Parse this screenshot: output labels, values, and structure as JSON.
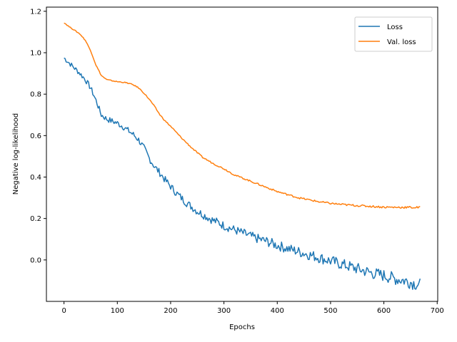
{
  "chart_data": {
    "type": "line",
    "title": "",
    "xlabel": "Epochs",
    "ylabel": "Negative log-likelihood",
    "xlim": [
      -33,
      701
    ],
    "ylim": [
      -0.2,
      1.22
    ],
    "xticks": [
      "0",
      "100",
      "200",
      "300",
      "400",
      "500",
      "600",
      "700"
    ],
    "yticks": [
      "0.0",
      "0.2",
      "0.4",
      "0.6",
      "0.8",
      "1.0",
      "1.2"
    ],
    "grid": false,
    "legend_position": "top-right",
    "series": [
      {
        "name": "Loss",
        "color": "#1f77b4",
        "noise": 0.012,
        "x": [
          0,
          10,
          20,
          30,
          40,
          50,
          60,
          70,
          80,
          90,
          100,
          110,
          120,
          130,
          140,
          150,
          160,
          170,
          180,
          190,
          200,
          210,
          220,
          230,
          240,
          250,
          260,
          270,
          280,
          290,
          300,
          320,
          340,
          360,
          380,
          400,
          420,
          440,
          460,
          480,
          500,
          520,
          540,
          560,
          580,
          600,
          620,
          640,
          660,
          668
        ],
        "values": [
          0.975,
          0.95,
          0.925,
          0.9,
          0.87,
          0.83,
          0.77,
          0.7,
          0.68,
          0.67,
          0.66,
          0.645,
          0.625,
          0.605,
          0.58,
          0.54,
          0.49,
          0.45,
          0.42,
          0.385,
          0.355,
          0.325,
          0.3,
          0.275,
          0.255,
          0.235,
          0.22,
          0.205,
          0.19,
          0.18,
          0.165,
          0.145,
          0.125,
          0.105,
          0.09,
          0.07,
          0.055,
          0.04,
          0.025,
          0.01,
          -0.005,
          -0.02,
          -0.035,
          -0.05,
          -0.065,
          -0.075,
          -0.09,
          -0.1,
          -0.115,
          -0.12
        ]
      },
      {
        "name": "Val. loss",
        "color": "#ff7f0e",
        "noise": 0.002,
        "x": [
          0,
          10,
          20,
          30,
          40,
          50,
          60,
          70,
          80,
          90,
          100,
          110,
          120,
          130,
          140,
          150,
          160,
          170,
          180,
          190,
          200,
          220,
          240,
          260,
          280,
          300,
          320,
          340,
          360,
          380,
          400,
          420,
          440,
          460,
          480,
          500,
          520,
          540,
          560,
          580,
          600,
          620,
          640,
          660,
          668
        ],
        "values": [
          1.145,
          1.125,
          1.108,
          1.09,
          1.06,
          1.01,
          0.94,
          0.89,
          0.87,
          0.865,
          0.86,
          0.858,
          0.853,
          0.845,
          0.83,
          0.805,
          0.775,
          0.74,
          0.7,
          0.67,
          0.645,
          0.59,
          0.54,
          0.495,
          0.465,
          0.44,
          0.41,
          0.39,
          0.37,
          0.35,
          0.33,
          0.315,
          0.3,
          0.29,
          0.28,
          0.273,
          0.268,
          0.264,
          0.261,
          0.258,
          0.255,
          0.254,
          0.254,
          0.253,
          0.253
        ]
      }
    ]
  }
}
